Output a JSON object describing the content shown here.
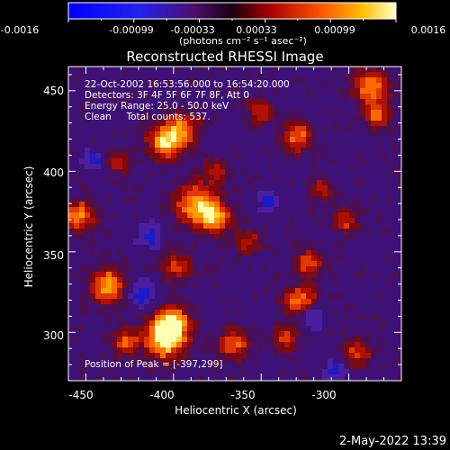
{
  "colorbar": {
    "tick_labels": [
      "-0.0016",
      "-0.00099",
      "-0.00033",
      "0.00033",
      "0.00099",
      "0.0016"
    ],
    "units_label": "(photons cm⁻² s⁻¹ asec⁻²)",
    "range": [
      -0.0016,
      0.0016
    ]
  },
  "plot": {
    "title": "Reconstructed RHESSI Image",
    "xlabel": "Heliocentric X (arcsec)",
    "ylabel": "Heliocentric Y (arcsec)",
    "x_ticks": [
      "-450",
      "-400",
      "-350",
      "-300"
    ],
    "y_ticks": [
      "300",
      "350",
      "400",
      "450"
    ],
    "xlim": [
      -460,
      -270
    ],
    "ylim": [
      270,
      465
    ]
  },
  "annotations": {
    "line1": "22-Oct-2002 16:53:56.000 to 16:54:20.000",
    "line2": "Detectors: 3F 4F 5F 6F 7F 8F, Att 0",
    "line3": "Energy Range: 25.0 - 50.0 keV",
    "line4": "Clean     Total counts: 537.",
    "peak": "Position of Peak = [-397,299]"
  },
  "peak_position": [
    -397,
    299
  ],
  "footer": {
    "timestamp": "2-May-2022 13:39"
  }
}
